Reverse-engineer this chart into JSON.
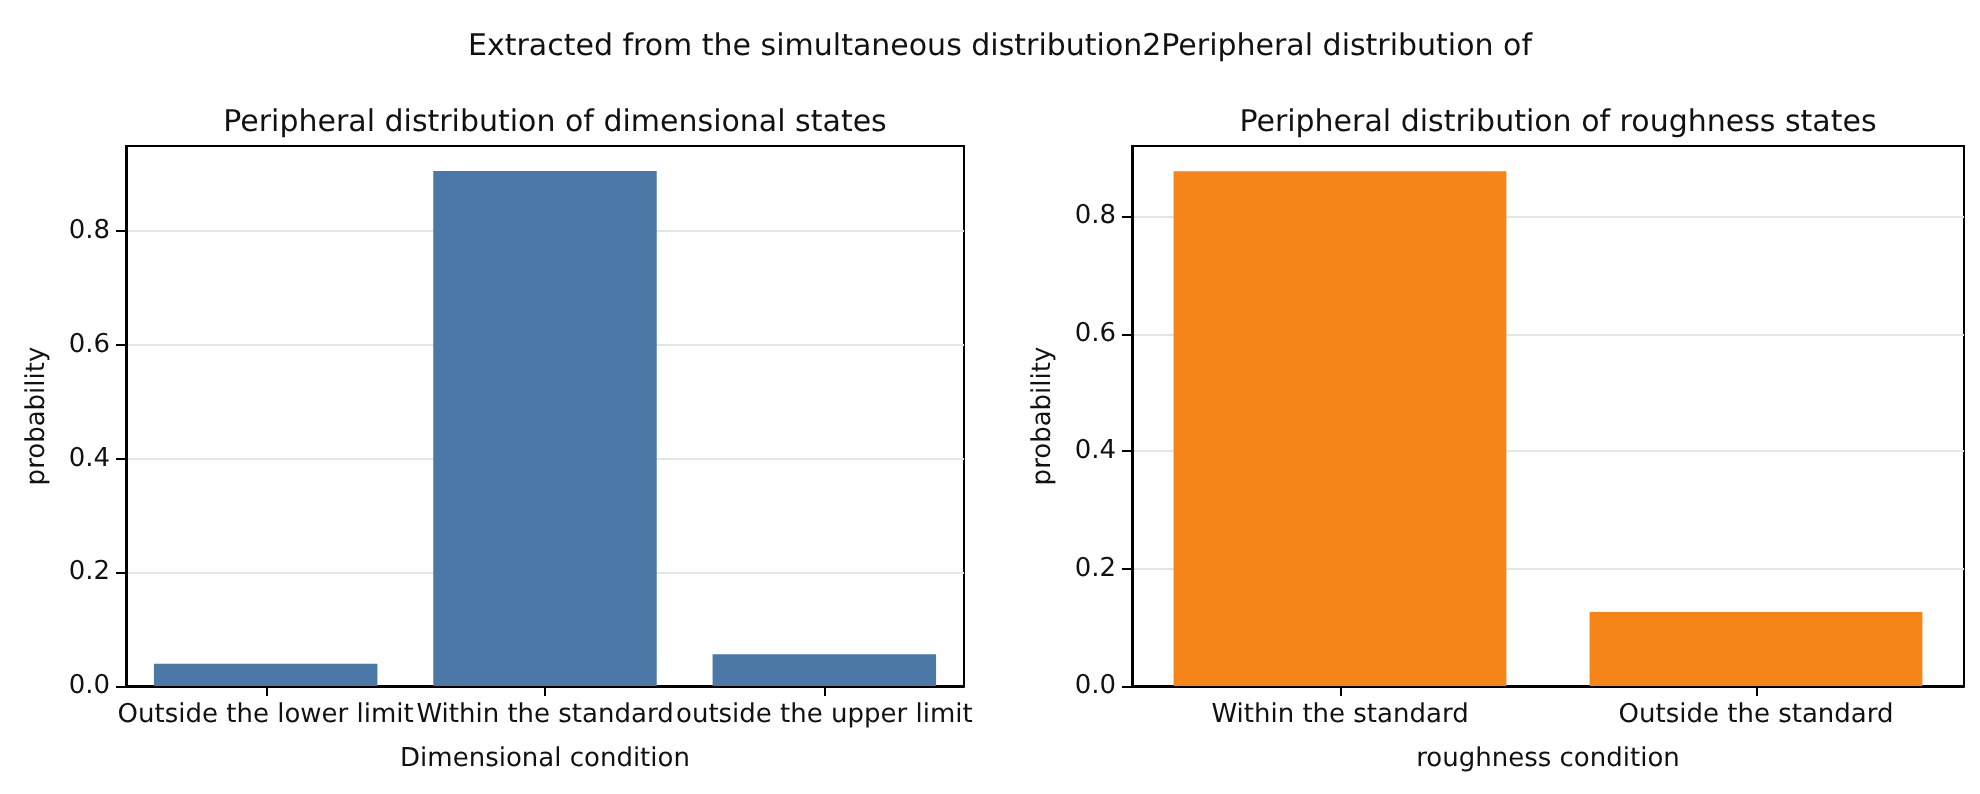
{
  "chart_data": [
    {
      "type": "bar",
      "title": "Peripheral distribution of dimensional states",
      "annotations": [
        "Extracted from the simultaneous distribution2Peripheral distribution of"
      ],
      "xlabel": "Dimensional condition",
      "ylabel": "probability",
      "categories": [
        "Outside the lower limit",
        "Within the standard",
        "outside the upper limit"
      ],
      "values": [
        0.039,
        0.906,
        0.056
      ],
      "color": "#4c78a8",
      "ylim": [
        0,
        0.95
      ],
      "yticks": [
        {
          "value": 0,
          "label": "0.0"
        },
        {
          "value": 0.2,
          "label": "0.2"
        },
        {
          "value": 0.4,
          "label": "0.4"
        },
        {
          "value": 0.6,
          "label": "0.6"
        },
        {
          "value": 0.8,
          "label": "0.8"
        }
      ],
      "grid": "y"
    },
    {
      "type": "bar",
      "title": "Peripheral distribution of roughness states",
      "xlabel": "roughness condition",
      "ylabel": "probability",
      "categories": [
        "Within the standard",
        "Outside the standard"
      ],
      "values": [
        0.877,
        0.126
      ],
      "color": "#f58518",
      "ylim": [
        0,
        0.92
      ],
      "yticks": [
        {
          "value": 0,
          "label": "0.0"
        },
        {
          "value": 0.2,
          "label": "0.2"
        },
        {
          "value": 0.4,
          "label": "0.4"
        },
        {
          "value": 0.6,
          "label": "0.6"
        },
        {
          "value": 0.8,
          "label": "0.8"
        }
      ],
      "grid": "y"
    }
  ]
}
